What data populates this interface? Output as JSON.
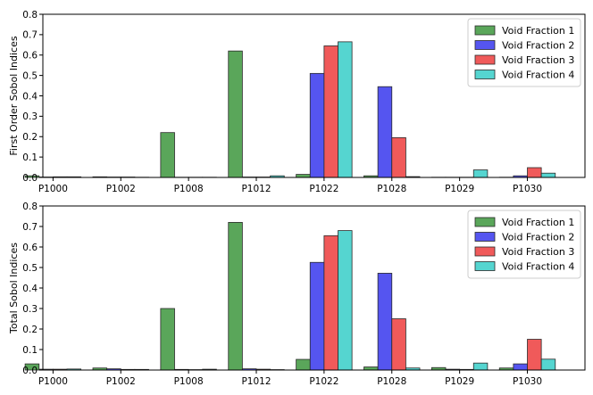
{
  "chart_data": [
    {
      "type": "bar",
      "title": "",
      "xlabel": "",
      "ylabel": "First Order Sobol Indices",
      "ylim": [
        0,
        0.8
      ],
      "yticks": [
        0.0,
        0.1,
        0.2,
        0.3,
        0.4,
        0.5,
        0.6,
        0.7,
        0.8
      ],
      "ytick_labels": [
        "0.0",
        "0.1",
        "0.2",
        "0.3",
        "0.4",
        "0.5",
        "0.6",
        "0.7",
        "0.8"
      ],
      "categories": [
        "P1000",
        "P1002",
        "P1008",
        "P1012",
        "P1022",
        "P1028",
        "P1029",
        "P1030"
      ],
      "legend_position": "top-right",
      "grid": false,
      "series": [
        {
          "name": "Void Fraction 1",
          "color": "#5aa65a",
          "values": [
            0.008,
            0.003,
            0.22,
            0.62,
            0.015,
            0.008,
            0.001,
            0.001
          ]
        },
        {
          "name": "Void Fraction 2",
          "color": "#5555f0",
          "values": [
            0.002,
            0.002,
            0.001,
            0.002,
            0.51,
            0.445,
            0.001,
            0.008
          ]
        },
        {
          "name": "Void Fraction 3",
          "color": "#f05a5a",
          "values": [
            0.003,
            0.002,
            0.001,
            0.002,
            0.645,
            0.195,
            0.001,
            0.048
          ]
        },
        {
          "name": "Void Fraction 4",
          "color": "#55d5d0",
          "values": [
            0.003,
            0.001,
            0.001,
            0.008,
            0.665,
            0.004,
            0.037,
            0.021
          ]
        }
      ]
    },
    {
      "type": "bar",
      "title": "",
      "xlabel": "",
      "ylabel": "Total Sobol Indices",
      "ylim": [
        0,
        0.8
      ],
      "yticks": [
        0.0,
        0.1,
        0.2,
        0.3,
        0.4,
        0.5,
        0.6,
        0.7,
        0.8
      ],
      "ytick_labels": [
        "0.0",
        "0.1",
        "0.2",
        "0.3",
        "0.4",
        "0.5",
        "0.6",
        "0.7",
        "0.8"
      ],
      "categories": [
        "P1000",
        "P1002",
        "P1008",
        "P1012",
        "P1022",
        "P1028",
        "P1029",
        "P1030"
      ],
      "legend_position": "top-right",
      "grid": false,
      "series": [
        {
          "name": "Void Fraction 1",
          "color": "#5aa65a",
          "values": [
            0.03,
            0.01,
            0.3,
            0.72,
            0.052,
            0.015,
            0.012,
            0.01
          ]
        },
        {
          "name": "Void Fraction 2",
          "color": "#5555f0",
          "values": [
            0.004,
            0.006,
            0.003,
            0.006,
            0.525,
            0.472,
            0.004,
            0.03
          ]
        },
        {
          "name": "Void Fraction 3",
          "color": "#f05a5a",
          "values": [
            0.004,
            0.003,
            0.002,
            0.004,
            0.655,
            0.25,
            0.003,
            0.15
          ]
        },
        {
          "name": "Void Fraction 4",
          "color": "#55d5d0",
          "values": [
            0.005,
            0.003,
            0.004,
            0.002,
            0.68,
            0.01,
            0.034,
            0.053
          ]
        }
      ]
    }
  ]
}
